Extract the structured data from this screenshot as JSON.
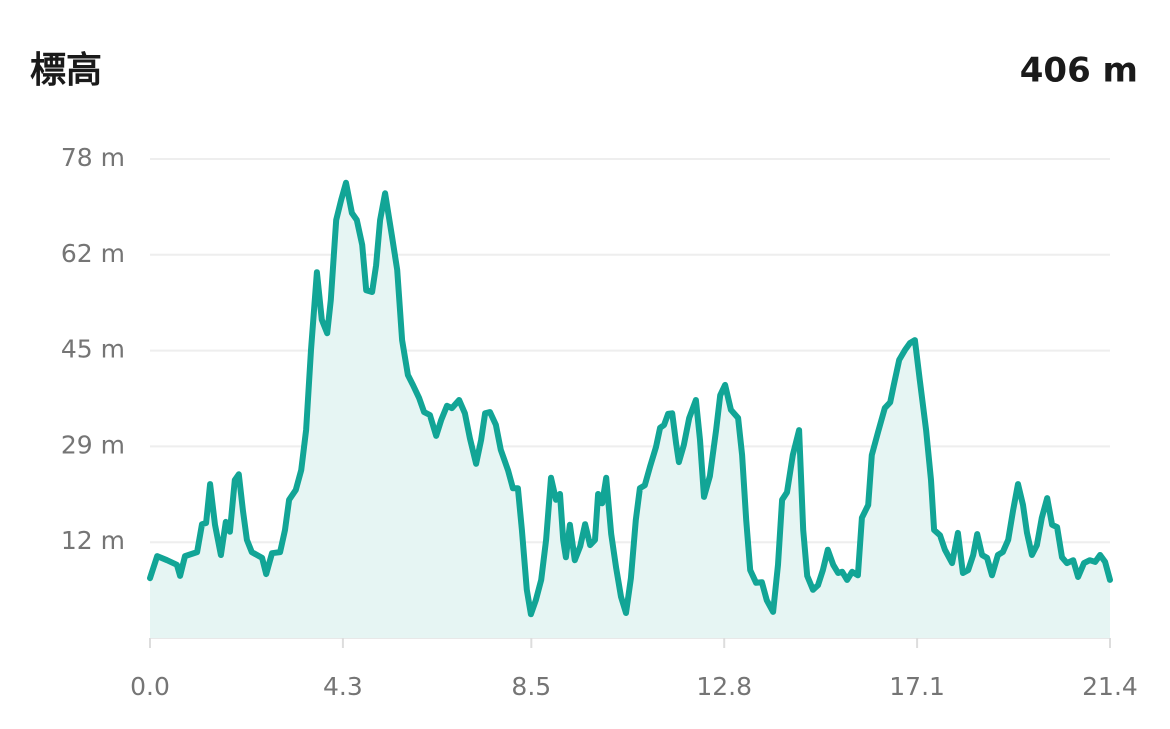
{
  "chart_data": {
    "type": "area",
    "title": "標高",
    "annotation": "406 m",
    "color": "#12a596",
    "fill": "#e6f5f3",
    "grid": true,
    "xlim": [
      0,
      21.4
    ],
    "ylim": [
      -4.5,
      78
    ],
    "xticks": [
      {
        "value": 0,
        "label": "0.0"
      },
      {
        "value": 4.3,
        "label": "4.3"
      },
      {
        "value": 8.5,
        "label": "8.5"
      },
      {
        "value": 12.8,
        "label": "12.8"
      },
      {
        "value": 17.1,
        "label": "17.1"
      },
      {
        "value": 21.4,
        "label": "21.4"
      }
    ],
    "yticks": [
      {
        "value": 12,
        "label": "12 m"
      },
      {
        "value": 28.5,
        "label": "29 m"
      },
      {
        "value": 45,
        "label": "45 m"
      },
      {
        "value": 61.5,
        "label": "62 m"
      },
      {
        "value": 78,
        "label": "78 m"
      }
    ],
    "x": [
      0,
      0.16,
      0.38,
      0.6,
      0.67,
      0.78,
      1.05,
      1.16,
      1.25,
      1.34,
      1.45,
      1.58,
      1.69,
      1.78,
      1.89,
      1.98,
      2.07,
      2.16,
      2.27,
      2.5,
      2.59,
      2.72,
      2.9,
      3.01,
      3.1,
      3.25,
      3.37,
      3.48,
      3.59,
      3.72,
      3.83,
      3.95,
      4.03,
      4.15,
      4.26,
      4.37,
      4.5,
      4.61,
      4.73,
      4.82,
      4.95,
      5.04,
      5.13,
      5.24,
      5.39,
      5.51,
      5.62,
      5.75,
      5.86,
      6.0,
      6.11,
      6.24,
      6.38,
      6.49,
      6.62,
      6.73,
      6.89,
      7.02,
      7.13,
      7.27,
      7.38,
      7.47,
      7.58,
      7.71,
      7.82,
      7.98,
      8.09,
      8.2,
      8.29,
      8.4,
      8.49,
      8.6,
      8.72,
      8.83,
      8.94,
      9.05,
      9.14,
      9.21,
      9.27,
      9.36,
      9.47,
      9.59,
      9.7,
      9.81,
      9.92,
      9.99,
      10.08,
      10.17,
      10.28,
      10.39,
      10.5,
      10.61,
      10.72,
      10.83,
      10.92,
      11.03,
      11.15,
      11.28,
      11.37,
      11.46,
      11.55,
      11.64,
      11.73,
      11.79,
      11.9,
      12.02,
      12.17,
      12.26,
      12.35,
      12.48,
      12.62,
      12.71,
      12.82,
      12.95,
      13.11,
      13.2,
      13.29,
      13.38,
      13.51,
      13.64,
      13.75,
      13.89,
      14.0,
      14.09,
      14.2,
      14.33,
      14.47,
      14.56,
      14.65,
      14.78,
      14.89,
      15.0,
      15.11,
      15.23,
      15.34,
      15.43,
      15.54,
      15.65,
      15.78,
      15.87,
      16.01,
      16.09,
      16.23,
      16.38,
      16.5,
      16.58,
      16.7,
      16.83,
      16.94,
      17.05,
      17.16,
      17.3,
      17.41,
      17.48,
      17.61,
      17.72,
      17.88,
      18.01,
      18.12,
      18.24,
      18.35,
      18.44,
      18.55,
      18.66,
      18.77,
      18.9,
      19.01,
      19.13,
      19.24,
      19.35,
      19.46,
      19.55,
      19.66,
      19.77,
      19.88,
      20.0,
      20.11,
      20.22,
      20.33,
      20.44,
      20.58,
      20.69,
      20.82,
      20.95,
      21.07,
      21.18,
      21.29,
      21.4
    ],
    "values": [
      5.8,
      9.6,
      8.9,
      8.1,
      6.2,
      9.6,
      10.3,
      15.1,
      15.3,
      22.0,
      15.0,
      9.8,
      15.5,
      13.8,
      22.7,
      23.7,
      17.5,
      12.4,
      10.3,
      9.3,
      6.5,
      10.1,
      10.3,
      14.1,
      19.3,
      21.0,
      24.4,
      31.3,
      45.1,
      58.5,
      50.3,
      48.0,
      53.7,
      67.5,
      70.9,
      73.9,
      68.7,
      67.5,
      63.2,
      55.4,
      55.1,
      59.7,
      67.5,
      72.1,
      64.9,
      58.9,
      46.8,
      40.8,
      39.1,
      36.8,
      34.4,
      33.9,
      30.3,
      33.0,
      35.5,
      35.1,
      36.5,
      34.2,
      29.9,
      25.5,
      29.6,
      34.2,
      34.4,
      32.2,
      27.9,
      24.4,
      21.3,
      21.3,
      14.1,
      3.8,
      -0.4,
      2.0,
      5.5,
      12.4,
      23.1,
      19.3,
      20.3,
      12.4,
      9.4,
      15.0,
      8.9,
      11.3,
      15.1,
      11.5,
      12.4,
      20.3,
      18.7,
      23.1,
      13.4,
      7.6,
      2.6,
      -0.2,
      5.8,
      15.8,
      21.3,
      21.8,
      25.1,
      28.4,
      31.7,
      32.2,
      34.1,
      34.2,
      28.9,
      25.8,
      28.7,
      33.4,
      36.5,
      29.6,
      19.8,
      23.4,
      31.3,
      37.3,
      39.1,
      34.8,
      33.4,
      27.0,
      15.8,
      7.2,
      5.0,
      5.1,
      2.0,
      0.0,
      8.1,
      19.3,
      20.6,
      27.0,
      31.3,
      14.1,
      6.2,
      3.8,
      4.6,
      7.2,
      10.7,
      8.1,
      6.7,
      6.9,
      5.5,
      6.9,
      6.3,
      16.2,
      18.4,
      27.0,
      31.0,
      35.1,
      36.1,
      39.1,
      43.4,
      45.1,
      46.3,
      46.8,
      39.9,
      31.3,
      22.7,
      14.1,
      13.2,
      10.7,
      8.4,
      13.6,
      6.7,
      7.2,
      9.8,
      13.4,
      9.8,
      9.3,
      6.3,
      9.8,
      10.3,
      12.4,
      17.5,
      22.0,
      18.4,
      13.6,
      9.8,
      11.5,
      16.2,
      19.6,
      15.0,
      14.6,
      9.4,
      8.4,
      8.9,
      6.0,
      8.4,
      8.9,
      8.6,
      9.8,
      8.6,
      5.5
    ]
  }
}
